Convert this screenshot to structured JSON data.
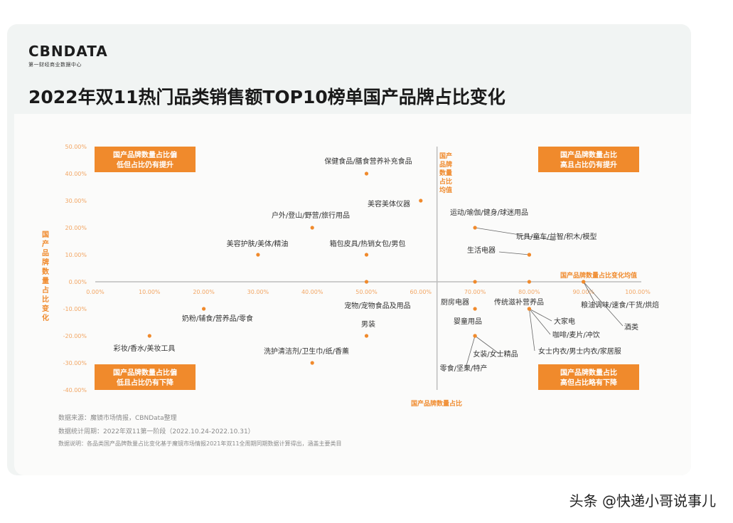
{
  "brand": {
    "logo": "CBNDATA",
    "tagline": "第一财经商业数据中心"
  },
  "page_title": "2022年双11热门品类销售额TOP10榜单国产品牌占比变化",
  "footer": {
    "source": "数据来源：魔镜市场情报，CBNData整理",
    "period": "数据统计周期：2022年双11第一阶段（2022.10.24-2022.10.31）",
    "note": "数据说明：各品类国产品牌数量占比变化基于魔镜市场情报2021年双11全周期同期数据计算得出，涵盖主要类目"
  },
  "watermark": "头条 @快递小哥说事儿",
  "colors": {
    "accent": "#f08a2c",
    "accent_text": "#ffffff",
    "axis": "#bdbdbd"
  },
  "chart_data": {
    "type": "scatter",
    "x": {
      "label": "国产品牌数量占比",
      "range": [
        0,
        100
      ],
      "ticks": [
        "0.00%",
        "10.00%",
        "20.00%",
        "30.00%",
        "40.00%",
        "50.00%",
        "60.00%",
        "70.00%",
        "80.00%",
        "90.00%",
        "100.00%"
      ]
    },
    "y": {
      "label": "国产品牌数量占比变化",
      "range": [
        -40,
        50
      ],
      "ticks": [
        "50.00%",
        "40.00%",
        "30.00%",
        "20.00%",
        "10.00%",
        "0.00%",
        "-10.00%",
        "-20.00%",
        "-30.00%",
        "-40.00%"
      ]
    },
    "reference_lines": {
      "x_label": "国产品牌数量占比均值",
      "x": 63,
      "y_label": "国产品牌数量占比变化均值",
      "y": 0
    },
    "quadrants": {
      "top_left": "国产品牌数量占比偏低但占比仍有提升",
      "top_right": "国产品牌数量占比高且占比仍有提升",
      "bottom_left": "国产品牌数量占比偏低且占比仍有下降",
      "bottom_right": "国产品牌数量占比高但占比略有下降"
    },
    "points": [
      {
        "label": "保健食品/膳食营养补充食品",
        "x": 50,
        "y": 40
      },
      {
        "label": "美容美体仪器",
        "x": 60,
        "y": 30
      },
      {
        "label": "户外/登山/野营/旅行用品",
        "x": 40,
        "y": 20
      },
      {
        "label": "美容护肤/美体/精油",
        "x": 30,
        "y": 10
      },
      {
        "label": "箱包皮具/热销女包/男包",
        "x": 50,
        "y": 10
      },
      {
        "label": "运动/瑜伽/健身/球迷用品",
        "x": 70,
        "y": 20
      },
      {
        "label": "玩具/童车/益智/积木/模型",
        "x": 80,
        "y": 10
      },
      {
        "label": "生活电器",
        "x": 80,
        "y": 10
      },
      {
        "label": "宠物/宠物食品及用品",
        "x": 50,
        "y": 0
      },
      {
        "label": "奶粉/辅食/营养品/零食",
        "x": 20,
        "y": -10
      },
      {
        "label": "彩妆/香水/美妆工具",
        "x": 10,
        "y": -20
      },
      {
        "label": "男装",
        "x": 50,
        "y": -20
      },
      {
        "label": "洗护清洁剂/卫生巾/纸/香薰",
        "x": 40,
        "y": -30
      },
      {
        "label": "厨房电器",
        "x": 70,
        "y": 0
      },
      {
        "label": "传统滋补营养品",
        "x": 80,
        "y": 0
      },
      {
        "label": "婴童用品",
        "x": 70,
        "y": -10
      },
      {
        "label": "女装/女士精品",
        "x": 70,
        "y": -20
      },
      {
        "label": "零食/坚果/特产",
        "x": 70,
        "y": -20
      },
      {
        "label": "大家电",
        "x": 80,
        "y": -10
      },
      {
        "label": "咖啡/麦片/冲饮",
        "x": 80,
        "y": -10
      },
      {
        "label": "女士内衣/男士内衣/家居服",
        "x": 80,
        "y": -10
      },
      {
        "label": "粮油调味/速食/干货/烘焙",
        "x": 90,
        "y": 0
      },
      {
        "label": "酒类",
        "x": 90,
        "y": 0
      }
    ]
  }
}
